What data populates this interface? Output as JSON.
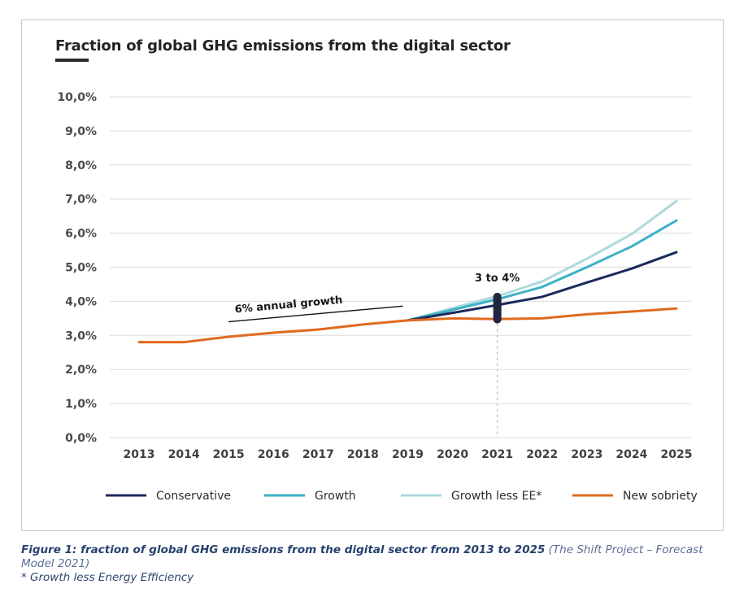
{
  "chart_data": {
    "type": "line",
    "title": "Fraction of global GHG emissions from the digital sector",
    "xlabel": "",
    "ylabel": "",
    "x": [
      2013,
      2014,
      2015,
      2016,
      2017,
      2018,
      2019,
      2020,
      2021,
      2022,
      2023,
      2024,
      2025
    ],
    "ylim": [
      0,
      10
    ],
    "yticks": [
      0,
      1,
      2,
      3,
      4,
      5,
      6,
      7,
      8,
      9,
      10
    ],
    "ytick_labels": [
      "0,0%",
      "1,0%",
      "2,0%",
      "3,0%",
      "4,0%",
      "5,0%",
      "6,0%",
      "7,0%",
      "8,0%",
      "9,0%",
      "10,0%"
    ],
    "xtick_labels": [
      "2013",
      "2014",
      "2015",
      "2016",
      "2017",
      "2018",
      "2019",
      "2020",
      "2021",
      "2022",
      "2023",
      "2024",
      "2025"
    ],
    "grid": true,
    "legend_position": "bottom",
    "series": [
      {
        "name": "Growth less EE*",
        "color": "#acd9dc",
        "values": [
          null,
          null,
          null,
          null,
          null,
          null,
          3.44,
          3.8,
          4.15,
          4.58,
          5.25,
          5.97,
          6.94
        ]
      },
      {
        "name": "Growth",
        "color": "#3eb0c6",
        "values": [
          null,
          null,
          null,
          null,
          null,
          null,
          3.44,
          3.75,
          4.06,
          4.42,
          5.0,
          5.61,
          6.37
        ]
      },
      {
        "name": "Conservative",
        "color": "#1b2a5c",
        "values": [
          null,
          null,
          null,
          null,
          null,
          null,
          3.44,
          3.66,
          3.89,
          4.13,
          4.55,
          4.96,
          5.44
        ]
      },
      {
        "name": "New sobriety",
        "color": "#e06a1f",
        "values": [
          2.8,
          2.8,
          2.96,
          3.08,
          3.17,
          3.32,
          3.44,
          3.5,
          3.48,
          3.5,
          3.62,
          3.7,
          3.79
        ]
      }
    ],
    "legend_order": [
      "Conservative",
      "Growth",
      "Growth less EE*",
      "New sobriety"
    ],
    "annotations": [
      {
        "text": "6% annual growth",
        "type": "trend-line",
        "from": [
          2015,
          3.4
        ],
        "to": [
          2019,
          3.86
        ]
      },
      {
        "text": "3 to 4%",
        "type": "range-marker",
        "x": 2021,
        "range": [
          3.35,
          4.25
        ],
        "color": "#22253f"
      }
    ]
  },
  "caption": {
    "figure_label": "Figure 1: fraction of global GHG emissions from the digital sector from 2013 to 2025",
    "source": " (The Shift Project – Forecast Model 2021)",
    "footnote": "* Growth less Energy Efficiency"
  }
}
